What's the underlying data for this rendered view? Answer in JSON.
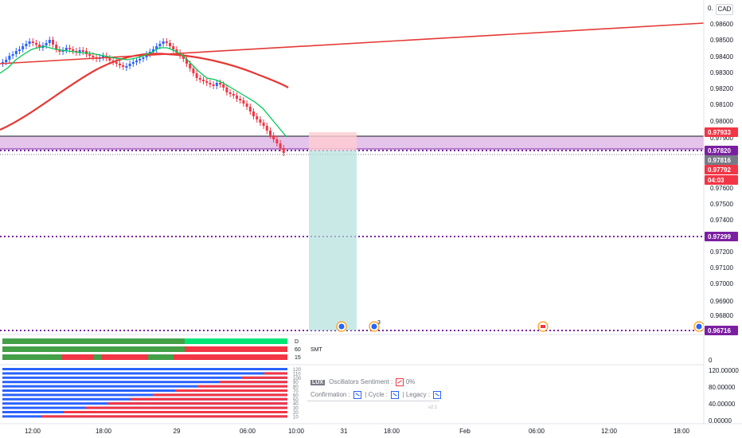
{
  "instrument": {
    "currency_prefix": "0.",
    "currency": "CAD"
  },
  "price_axis": {
    "labels": [
      "0.98600",
      "0.98500",
      "0.98400",
      "0.98300",
      "0.98200",
      "0.98100",
      "0.98000",
      "0.97900",
      "0.97600",
      "0.97500",
      "0.97400",
      "0.97300",
      "0.97200",
      "0.97100",
      "0.97000",
      "0.96900",
      "0.96800"
    ],
    "tags": [
      {
        "value": "0.97933",
        "color": "#f23645"
      },
      {
        "value": "0.97820",
        "color": "#7b1fa2"
      },
      {
        "value": "0.97816",
        "color": "#787b86"
      },
      {
        "value": "0.97792",
        "color": "#f23645"
      },
      {
        "value": "04:03",
        "color": "#f23645"
      },
      {
        "value": "0.97299",
        "color": "#7b1fa2"
      },
      {
        "value": "0.96716",
        "color": "#7b1fa2"
      }
    ]
  },
  "time_axis": {
    "labels": [
      "12:00",
      "18:00",
      "29",
      "06:00",
      "10:00",
      "31",
      "18:00",
      "Feb",
      "06:00",
      "12:00",
      "18:00"
    ]
  },
  "mtf": {
    "labels": [
      "D",
      "60",
      "15"
    ],
    "indicator_label": "SMT"
  },
  "oscillator": {
    "scale_labels": [
      "120",
      "110",
      "100",
      "90",
      "80",
      "70",
      "60",
      "50",
      "40",
      "30",
      "20",
      "10"
    ],
    "right_axis": [
      "120.00000",
      "80.00000",
      "40.00000",
      "0.00000"
    ],
    "badge": "LUX",
    "sentiment_label": "Oscillators Sentiment :",
    "sentiment_value": "0%",
    "confirmation_label": "Confirmation :",
    "cycle_label": "Cycle :",
    "legacy_label": "Legacy :",
    "version": "v2.1"
  },
  "mtf_axis_zero": "0",
  "event_badge_count": "3",
  "colors": {
    "bull": "#089981",
    "bear": "#f23645",
    "blue_candle": "#2962ff",
    "ema_fast": "#00c853",
    "ema_slow": "#e53935",
    "zone": "#ce93d8",
    "dotted": "#7b1fa2",
    "target": "#b2dfdb",
    "stop": "#ffcdd2"
  }
}
